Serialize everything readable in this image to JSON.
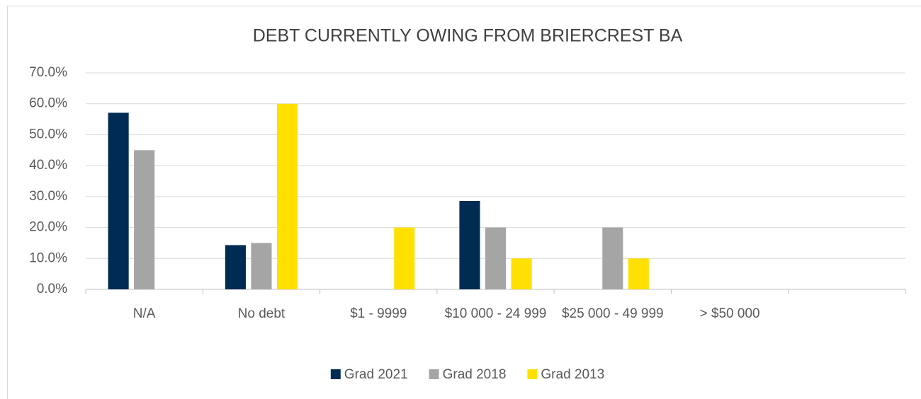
{
  "chart_data": {
    "type": "bar",
    "title": "DEBT CURRENTLY OWING FROM BRIERCREST BA",
    "categories": [
      "N/A",
      "No debt",
      "$1 - 9999",
      "$10 000 - 24 999",
      "$25 000 - 49 999",
      "> $50 000",
      null
    ],
    "series": [
      {
        "name": "Grad 2021",
        "color": "#002b53",
        "values": [
          57.1,
          14.3,
          0,
          28.6,
          0,
          0,
          null
        ]
      },
      {
        "name": "Grad 2018",
        "color": "#a5a5a5",
        "values": [
          45,
          15,
          0,
          20,
          20,
          0,
          null
        ]
      },
      {
        "name": "Grad 2013",
        "color": "#ffe000",
        "values": [
          0,
          60,
          20,
          10,
          10,
          0,
          null
        ]
      }
    ],
    "ylim": [
      0,
      70
    ],
    "yticks": [
      {
        "value": 0,
        "label": "0.0%"
      },
      {
        "value": 10,
        "label": "10.0%"
      },
      {
        "value": 20,
        "label": "20.0%"
      },
      {
        "value": 30,
        "label": "30.0%"
      },
      {
        "value": 40,
        "label": "40.0%"
      },
      {
        "value": 50,
        "label": "50.0%"
      },
      {
        "value": 60,
        "label": "60.0%"
      },
      {
        "value": 70,
        "label": "70.0%"
      }
    ],
    "grid": true,
    "legend": "bottom"
  }
}
